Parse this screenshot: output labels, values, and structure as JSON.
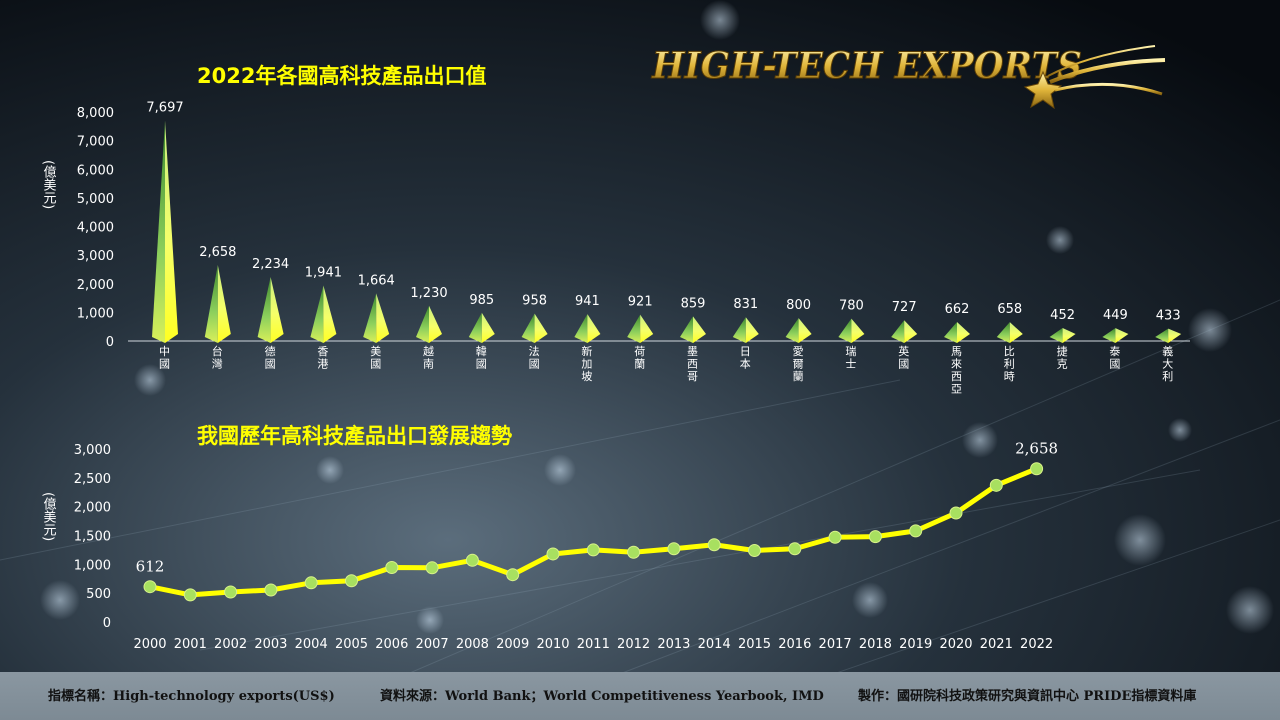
{
  "logo_text": "HIGH-TECH EXPORTS",
  "colors": {
    "accent": "#ffff00",
    "bar_top": "#ffff33",
    "bar_green": "#7fc35a",
    "line": "#ffff00",
    "marker": "#a8e060"
  },
  "footer": {
    "indicator": "指標名稱：High-technology exports(US$)",
    "source": "資料來源：World Bank；World Competitiveness Yearbook, IMD",
    "producer": "製作：國研院科技政策研究與資訊中心 PRIDE指標資料庫"
  },
  "chart_data": [
    {
      "type": "bar",
      "title": "2022年各國高科技產品出口值",
      "ylabel": "(億美元)",
      "ylim": [
        0,
        8000
      ],
      "yticks": [
        "0",
        "1,000",
        "2,000",
        "3,000",
        "4,000",
        "5,000",
        "6,000",
        "7,000",
        "8,000"
      ],
      "categories": [
        "中國",
        "台灣",
        "德國",
        "香港",
        "美國",
        "越南",
        "韓國",
        "法國",
        "新加坡",
        "荷蘭",
        "墨西哥",
        "日本",
        "愛爾蘭",
        "瑞士",
        "英國",
        "馬來西亞",
        "比利時",
        "捷克",
        "泰國",
        "義大利"
      ],
      "values": [
        7697,
        2658,
        2234,
        1941,
        1664,
        1230,
        985,
        958,
        941,
        921,
        859,
        831,
        800,
        780,
        727,
        662,
        658,
        452,
        449,
        433
      ],
      "value_labels": [
        "7,697",
        "2,658",
        "2,234",
        "1,941",
        "1,664",
        "1,230",
        "985",
        "958",
        "941",
        "921",
        "859",
        "831",
        "800",
        "780",
        "727",
        "662",
        "658",
        "452",
        "449",
        "433"
      ]
    },
    {
      "type": "line",
      "title": "我國歷年高科技產品出口發展趨勢",
      "ylabel": "(億美元)",
      "ylim": [
        0,
        3000
      ],
      "yticks": [
        "0",
        "500",
        "1,000",
        "1,500",
        "2,000",
        "2,500",
        "3,000"
      ],
      "x": [
        "2000",
        "2001",
        "2002",
        "2003",
        "2004",
        "2005",
        "2006",
        "2007",
        "2008",
        "2009",
        "2010",
        "2011",
        "2012",
        "2013",
        "2014",
        "2015",
        "2016",
        "2017",
        "2018",
        "2019",
        "2020",
        "2021",
        "2022"
      ],
      "values": [
        612,
        470,
        520,
        555,
        680,
        715,
        945,
        940,
        1070,
        820,
        1180,
        1250,
        1210,
        1270,
        1340,
        1240,
        1270,
        1470,
        1480,
        1580,
        1890,
        2370,
        2658
      ],
      "annotations": [
        {
          "index": 0,
          "label": "612"
        },
        {
          "index": 22,
          "label": "2,658"
        }
      ]
    }
  ]
}
